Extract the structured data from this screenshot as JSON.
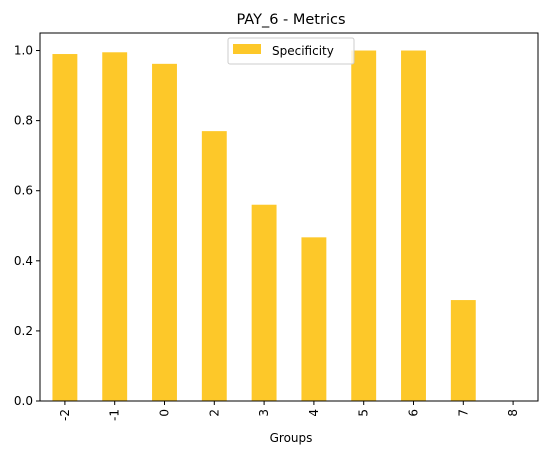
{
  "chart_data": {
    "type": "bar",
    "title": "PAY_6 - Metrics",
    "xlabel": "Groups",
    "ylabel": "",
    "categories": [
      "-2",
      "-1",
      "0",
      "2",
      "3",
      "4",
      "5",
      "6",
      "7",
      "8"
    ],
    "series": [
      {
        "name": "Specificity",
        "color": "#fdc829",
        "values": [
          0.99,
          0.995,
          0.962,
          0.77,
          0.56,
          0.467,
          1.0,
          1.0,
          0.288,
          0.0
        ]
      }
    ],
    "ylim": [
      0,
      1.05
    ],
    "yticks": [
      0.0,
      0.2,
      0.4,
      0.6,
      0.8,
      1.0
    ],
    "ytick_labels": [
      "0.0",
      "0.2",
      "0.4",
      "0.6",
      "0.8",
      "1.0"
    ],
    "grid": false,
    "legend_position": "top-center"
  }
}
